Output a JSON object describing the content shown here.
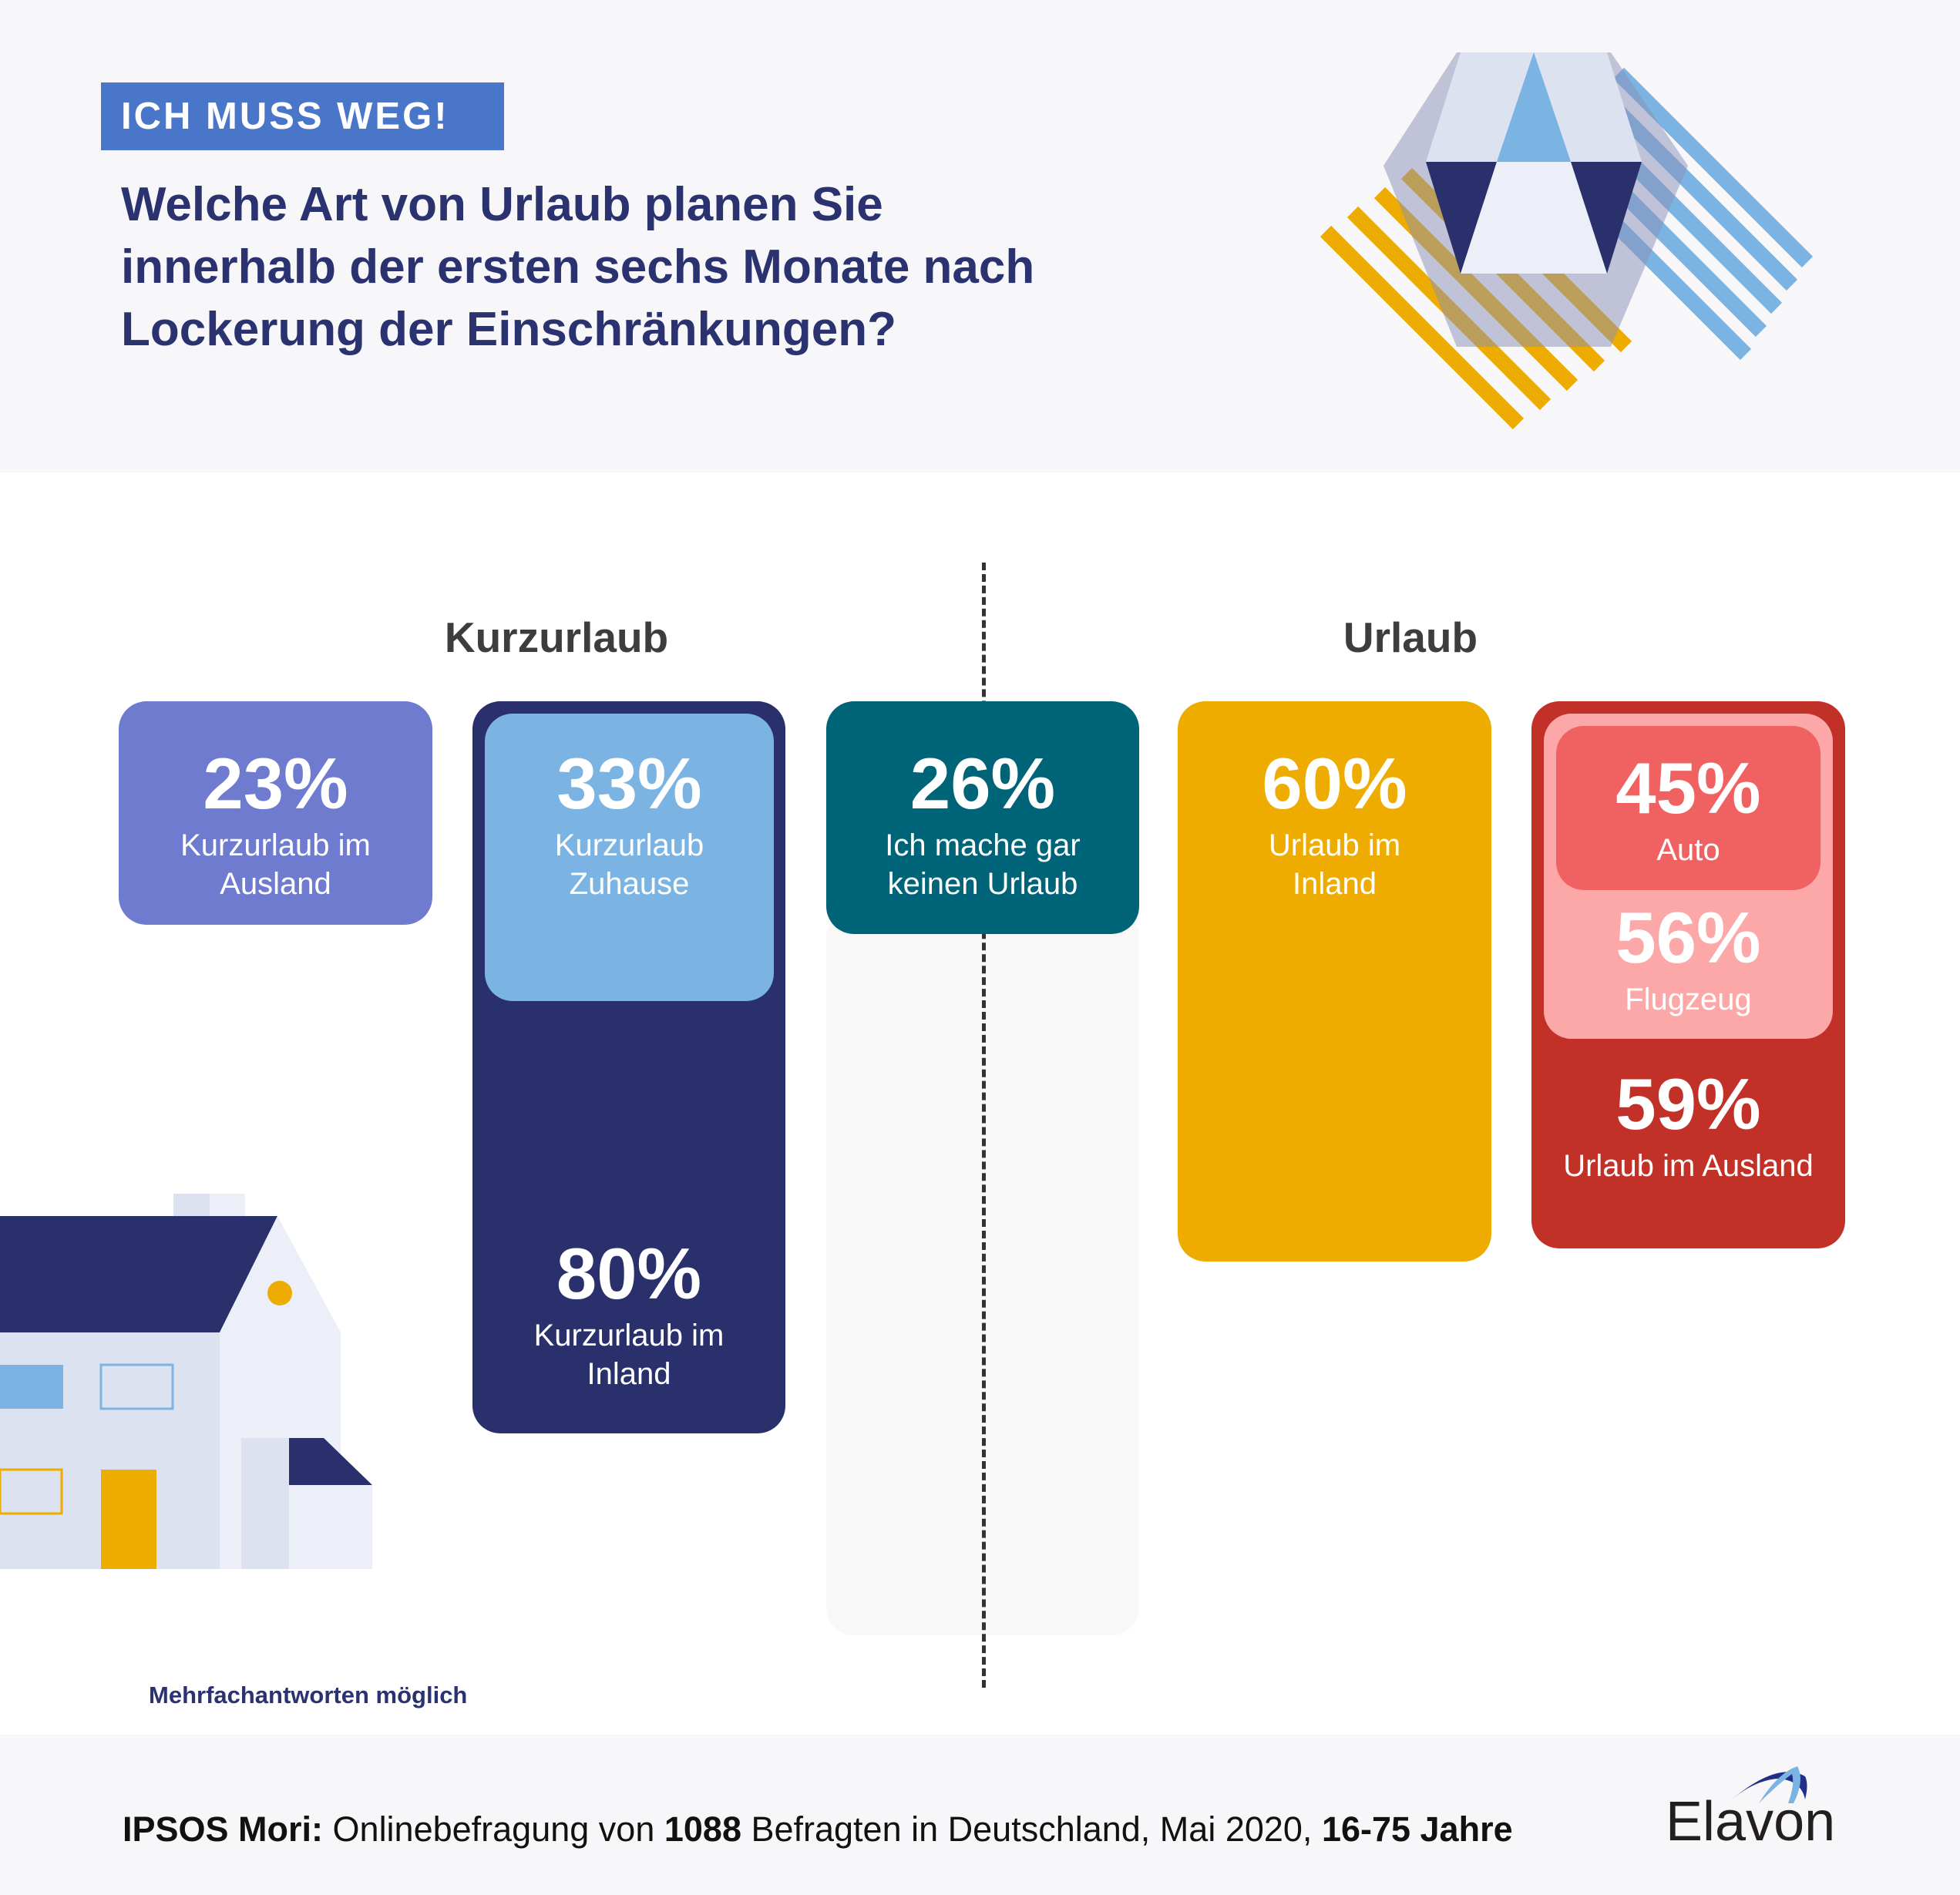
{
  "header": {
    "badge": "ICH MUSS WEG!",
    "title_lines": [
      "Welche Art von Urlaub planen Sie",
      "innerhalb der ersten sechs Monate nach",
      "Lockerung der Einschränkungen?"
    ]
  },
  "sections": {
    "left": "Kurzurlaub",
    "right": "Urlaub"
  },
  "boxes": [
    {
      "pct": "23%",
      "label": [
        "Kurzurlaub im",
        "Ausland"
      ],
      "color": "#6e7bcf"
    },
    {
      "pct": "33%",
      "label": [
        "Kurzurlaub",
        "Zuhause"
      ],
      "color": "#7bb4e2"
    },
    {
      "pct": "80%",
      "label": [
        "Kurzurlaub im",
        "Inland"
      ],
      "color": "#29306b"
    },
    {
      "pct": "26%",
      "label": [
        "Ich mache gar",
        "keinen Urlaub"
      ],
      "color": "#006479"
    },
    {
      "pct": "60%",
      "label": [
        "Urlaub im",
        "Inland"
      ],
      "color": "#eeac00"
    },
    {
      "pct": "45%",
      "label": [
        "Auto"
      ],
      "color": "#f06262"
    },
    {
      "pct": "56%",
      "label": [
        "Flugzeug"
      ],
      "color": "#fca8a8"
    },
    {
      "pct": "59%",
      "label": [
        "Urlaub im Ausland"
      ],
      "color": "#c23128"
    }
  ],
  "chart_data": {
    "type": "bar",
    "categories": [
      "Kurzurlaub im Ausland",
      "Kurzurlaub Zuhause",
      "Kurzurlaub im Inland",
      "Ich mache gar keinen Urlaub",
      "Urlaub im Inland",
      "Auto",
      "Flugzeug",
      "Urlaub im Ausland"
    ],
    "values": [
      23,
      33,
      80,
      26,
      60,
      45,
      56,
      59
    ],
    "unit": "%"
  },
  "note": "Mehrfachantworten möglich",
  "footer": {
    "s1": "IPSOS Mori:",
    "s2": " Onlinebefragung von ",
    "s3": "1088",
    "s4": " Befragten in Deutschland, Mai 2020, ",
    "s5": "16-75 Jahre"
  },
  "logo": {
    "text": "Elavon"
  }
}
